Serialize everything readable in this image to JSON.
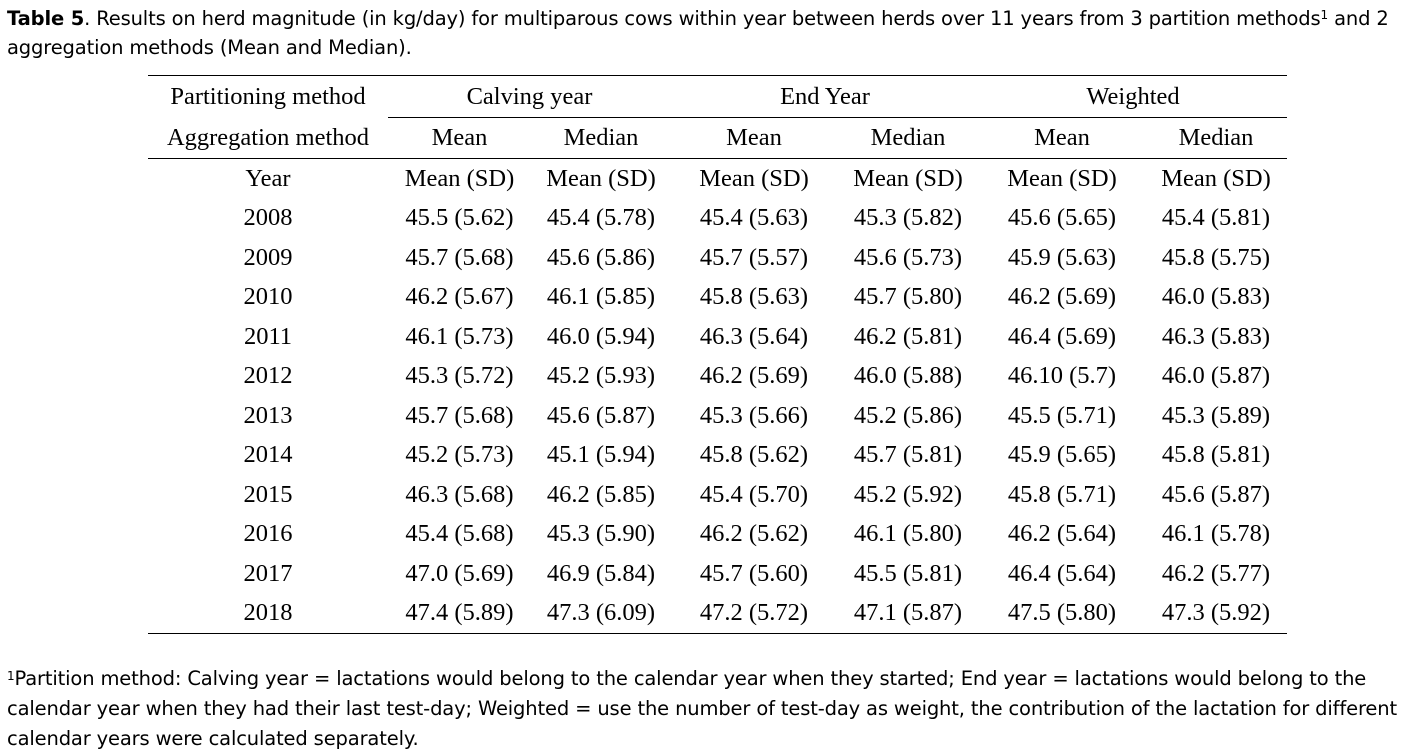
{
  "caption": {
    "label": "Table 5",
    "text_before_sup": ". Results on herd magnitude (in kg/day) for multiparous cows within year between herds over 11 years from 3 partition methods",
    "sup": "1",
    "text_after_sup": " and 2 aggregation methods (Mean and Median)."
  },
  "table": {
    "partition_header": "Partitioning method",
    "aggregation_header": "Aggregation method",
    "year_header": "Year",
    "partition_methods": [
      "Calving year",
      "End Year",
      "Weighted"
    ],
    "aggregation_methods": [
      "Mean",
      "Median",
      "Mean",
      "Median",
      "Mean",
      "Median"
    ],
    "stat_headers": [
      "Mean (SD)",
      "Mean (SD)",
      "Mean (SD)",
      "Mean (SD)",
      "Mean (SD)",
      "Mean (SD)"
    ],
    "rows": [
      {
        "year": "2008",
        "values": [
          "45.5 (5.62)",
          "45.4 (5.78)",
          "45.4 (5.63)",
          "45.3 (5.82)",
          "45.6 (5.65)",
          "45.4 (5.81)"
        ]
      },
      {
        "year": "2009",
        "values": [
          "45.7 (5.68)",
          "45.6 (5.86)",
          "45.7 (5.57)",
          "45.6 (5.73)",
          "45.9 (5.63)",
          "45.8 (5.75)"
        ]
      },
      {
        "year": "2010",
        "values": [
          "46.2 (5.67)",
          "46.1 (5.85)",
          "45.8 (5.63)",
          "45.7 (5.80)",
          "46.2 (5.69)",
          "46.0 (5.83)"
        ]
      },
      {
        "year": "2011",
        "values": [
          "46.1 (5.73)",
          "46.0 (5.94)",
          "46.3 (5.64)",
          "46.2 (5.81)",
          "46.4 (5.69)",
          "46.3 (5.83)"
        ]
      },
      {
        "year": "2012",
        "values": [
          "45.3 (5.72)",
          "45.2 (5.93)",
          "46.2 (5.69)",
          "46.0 (5.88)",
          "46.10 (5.7)",
          "46.0 (5.87)"
        ]
      },
      {
        "year": "2013",
        "values": [
          "45.7 (5.68)",
          "45.6 (5.87)",
          "45.3 (5.66)",
          "45.2 (5.86)",
          "45.5 (5.71)",
          "45.3 (5.89)"
        ]
      },
      {
        "year": "2014",
        "values": [
          "45.2 (5.73)",
          "45.1 (5.94)",
          "45.8 (5.62)",
          "45.7 (5.81)",
          "45.9 (5.65)",
          "45.8 (5.81)"
        ]
      },
      {
        "year": "2015",
        "values": [
          "46.3 (5.68)",
          "46.2 (5.85)",
          "45.4 (5.70)",
          "45.2 (5.92)",
          "45.8 (5.71)",
          "45.6 (5.87)"
        ]
      },
      {
        "year": "2016",
        "values": [
          "45.4 (5.68)",
          "45.3 (5.90)",
          "46.2 (5.62)",
          "46.1 (5.80)",
          "46.2 (5.64)",
          "46.1 (5.78)"
        ]
      },
      {
        "year": "2017",
        "values": [
          "47.0 (5.69)",
          "46.9 (5.84)",
          "45.7 (5.60)",
          "45.5 (5.81)",
          "46.4 (5.64)",
          "46.2 (5.77)"
        ]
      },
      {
        "year": "2018",
        "values": [
          "47.4 (5.89)",
          "47.3 (6.09)",
          "47.2 (5.72)",
          "47.1 (5.87)",
          "47.5 (5.80)",
          "47.3 (5.92)"
        ]
      }
    ]
  },
  "footnote": {
    "sup": "1",
    "text": "Partition method: Calving year = lactations would belong to the calendar year when they started; End year = lactations would belong to the calendar year when they had their last test-day; Weighted = use the number of test-day as weight, the contribution of the lactation for different calendar years were calculated separately."
  }
}
